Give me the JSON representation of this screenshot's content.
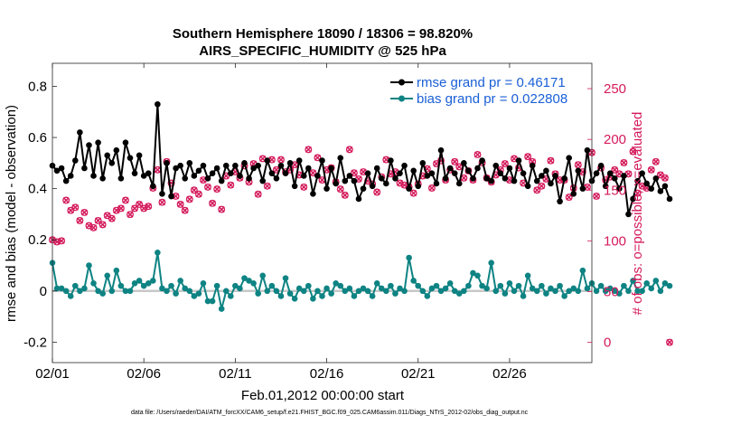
{
  "chart_data": {
    "type": "line",
    "title": "Southern Hemisphere 18090 / 18306 = 98.820%",
    "subtitle": "AIRS_SPECIFIC_HUMIDITY @ 525 hPa",
    "xlabel": "Feb.01,2012 00:00:00 start",
    "ylabel": "rmse and bias (model - observation)",
    "y2label": "# of obs: o=possible; ×=evaluated",
    "footer": "data file: /Users/raeder/DAI/ATM_forcXX/CAM6_setup/f.e21.FHIST_BGC.f09_025.CAM6assim.011/Diags_NTrS_2012-02/obs_diag_output.nc",
    "xlim": [
      0,
      29.5
    ],
    "ylim": [
      -0.28,
      0.89
    ],
    "y2lim": [
      -20,
      275
    ],
    "xticks": [
      0,
      5,
      10,
      15,
      20,
      25
    ],
    "xtick_labels": [
      "02/01",
      "02/06",
      "02/11",
      "02/16",
      "02/21",
      "02/26"
    ],
    "yticks": [
      -0.2,
      0,
      0.2,
      0.4,
      0.6,
      0.8
    ],
    "ytick_labels": [
      "-0.2",
      "0",
      "0.2",
      "0.4",
      "0.6",
      "0.8"
    ],
    "y2ticks": [
      0,
      50,
      100,
      150,
      200,
      250
    ],
    "y2tick_labels": [
      "0",
      "50",
      "100",
      "150",
      "200",
      "250"
    ],
    "legend": [
      {
        "label": "rmse grand pr = 0.46171",
        "color": "#000000"
      },
      {
        "label": "bias grand pr = 0.022808",
        "color": "#0e8383"
      }
    ],
    "colors": {
      "rmse": "#000000",
      "bias": "#0e8383",
      "obs": "#d41a5b",
      "zero": "#c8c8c8",
      "legend_text": "#1a5fd6"
    },
    "x_step": 0.25,
    "series": [
      {
        "name": "rmse",
        "values": [
          0.49,
          0.47,
          0.48,
          0.43,
          0.45,
          0.51,
          0.62,
          0.48,
          0.57,
          0.45,
          0.58,
          0.44,
          0.53,
          0.5,
          0.55,
          0.44,
          0.58,
          0.52,
          0.46,
          0.53,
          0.45,
          0.46,
          0.41,
          0.73,
          0.38,
          0.5,
          0.37,
          0.48,
          0.49,
          0.44,
          0.5,
          0.45,
          0.47,
          0.49,
          0.44,
          0.46,
          0.48,
          0.43,
          0.49,
          0.46,
          0.49,
          0.45,
          0.5,
          0.44,
          0.48,
          0.49,
          0.43,
          0.51,
          0.46,
          0.44,
          0.49,
          0.46,
          0.5,
          0.41,
          0.51,
          0.45,
          0.48,
          0.38,
          0.45,
          0.51,
          0.4,
          0.48,
          0.42,
          0.52,
          0.43,
          0.45,
          0.43,
          0.36,
          0.4,
          0.46,
          0.41,
          0.48,
          0.44,
          0.42,
          0.51,
          0.44,
          0.46,
          0.49,
          0.4,
          0.47,
          0.41,
          0.5,
          0.45,
          0.46,
          0.42,
          0.55,
          0.44,
          0.48,
          0.46,
          0.42,
          0.5,
          0.47,
          0.44,
          0.48,
          0.51,
          0.44,
          0.43,
          0.49,
          0.46,
          0.44,
          0.48,
          0.43,
          0.51,
          0.46,
          0.41,
          0.49,
          0.43,
          0.45,
          0.47,
          0.42,
          0.45,
          0.35,
          0.44,
          0.52,
          0.38,
          0.47,
          0.4,
          0.55,
          0.43,
          0.46,
          0.49,
          0.41,
          0.46,
          0.44,
          0.4,
          0.45,
          0.3,
          0.36,
          0.43,
          0.46,
          0.42,
          0.4,
          0.44,
          0.39,
          0.41,
          0.36
        ]
      },
      {
        "name": "bias",
        "values": [
          0.11,
          0.01,
          0.01,
          0.0,
          -0.02,
          0.02,
          0.0,
          0.01,
          0.1,
          0.03,
          0.0,
          -0.01,
          0.06,
          0.0,
          0.08,
          0.02,
          0.0,
          0.0,
          0.03,
          0.04,
          0.02,
          0.03,
          0.04,
          0.15,
          0.01,
          0.0,
          0.02,
          -0.01,
          0.04,
          0.01,
          0.0,
          -0.02,
          -0.01,
          0.03,
          -0.04,
          -0.04,
          0.02,
          -0.07,
          0.0,
          -0.02,
          0.02,
          0.01,
          0.05,
          0.04,
          0.03,
          -0.01,
          0.06,
          0.0,
          0.02,
          0.0,
          -0.02,
          0.05,
          -0.01,
          -0.03,
          0.01,
          0.0,
          0.02,
          -0.03,
          0.0,
          -0.02,
          0.01,
          -0.01,
          0.03,
          0.02,
          0.0,
          0.01,
          -0.02,
          0.0,
          0.01,
          0.0,
          -0.02,
          0.03,
          0.01,
          0.0,
          0.02,
          -0.01,
          0.01,
          0.0,
          0.13,
          0.04,
          0.02,
          0.0,
          -0.02,
          0.01,
          0.02,
          0.0,
          0.01,
          0.03,
          0.0,
          -0.01,
          0.0,
          0.02,
          0.07,
          0.06,
          0.02,
          0.01,
          0.11,
          0.0,
          0.02,
          -0.01,
          0.03,
          0.0,
          0.02,
          -0.02,
          0.06,
          0.01,
          0.0,
          0.02,
          -0.01,
          0.01,
          0.0,
          0.02,
          -0.02,
          0.0,
          0.01,
          0.0,
          0.08,
          0.01,
          0.03,
          0.0,
          0.02,
          0.0,
          0.01,
          0.0,
          -0.01,
          0.02,
          0.0,
          0.04,
          0.0,
          0.0,
          0.03,
          0.01,
          0.04,
          0.0,
          0.03,
          0.02
        ]
      },
      {
        "name": "obs_possible",
        "values": [
          101,
          99,
          100,
          140,
          130,
          133,
          120,
          128,
          115,
          113,
          120,
          116,
          125,
          122,
          130,
          132,
          140,
          126,
          132,
          136,
          132,
          134,
          152,
          170,
          138,
          178,
          157,
          144,
          136,
          130,
          141,
          150,
          146,
          160,
          153,
          137,
          151,
          131,
          164,
          155,
          168,
          162,
          174,
          158,
          176,
          146,
          181,
          154,
          180,
          170,
          180,
          168,
          170,
          175,
          165,
          153,
          190,
          167,
          182,
          160,
          170,
          172,
          158,
          151,
          145,
          190,
          167,
          161,
          168,
          159,
          156,
          148,
          163,
          180,
          166,
          168,
          157,
          155,
          153,
          147,
          156,
          164,
          171,
          152,
          176,
          179,
          160,
          170,
          178,
          173,
          162,
          169,
          160,
          185,
          177,
          162,
          158,
          165,
          170,
          176,
          160,
          181,
          172,
          157,
          183,
          178,
          150,
          154,
          161,
          179,
          166,
          160,
          160,
          143,
          152,
          175,
          168,
          153,
          187,
          144,
          172,
          160,
          163,
          170,
          166,
          177,
          166,
          188,
          147,
          154,
          152,
          170,
          178,
          165,
          162,
          0
        ]
      },
      {
        "name": "obs_evaluated",
        "values": [
          101,
          99,
          100,
          140,
          130,
          133,
          120,
          128,
          115,
          113,
          120,
          116,
          125,
          122,
          130,
          132,
          140,
          126,
          132,
          136,
          132,
          134,
          152,
          170,
          138,
          178,
          157,
          144,
          136,
          130,
          141,
          150,
          146,
          160,
          153,
          137,
          151,
          131,
          164,
          155,
          168,
          162,
          174,
          158,
          176,
          146,
          181,
          154,
          180,
          170,
          180,
          168,
          170,
          175,
          165,
          153,
          190,
          167,
          182,
          160,
          170,
          172,
          158,
          151,
          145,
          190,
          167,
          161,
          168,
          159,
          156,
          148,
          163,
          180,
          166,
          168,
          157,
          155,
          153,
          147,
          156,
          164,
          171,
          152,
          176,
          179,
          160,
          170,
          178,
          173,
          162,
          169,
          160,
          185,
          177,
          162,
          158,
          165,
          170,
          176,
          160,
          181,
          172,
          157,
          183,
          178,
          150,
          154,
          161,
          179,
          166,
          160,
          160,
          143,
          152,
          175,
          168,
          153,
          187,
          144,
          172,
          160,
          163,
          170,
          166,
          177,
          166,
          188,
          147,
          154,
          152,
          170,
          178,
          165,
          162,
          0
        ]
      }
    ]
  }
}
